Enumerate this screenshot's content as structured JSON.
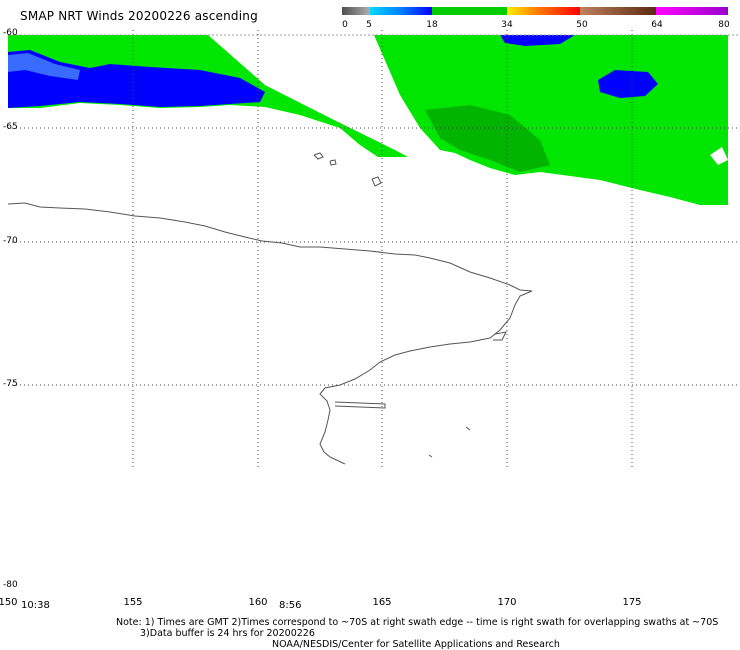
{
  "title": "SMAP NRT Winds 20200226 ascending",
  "colorbar": {
    "ticks": [
      "0",
      "5",
      "18",
      "34",
      "50",
      "64",
      "80"
    ],
    "colors": {
      "calm": "#7a7a7a",
      "light": "#00aaff",
      "moderate": "#0000ff",
      "gale": "#00cc00",
      "storm": "#f0e000",
      "hurricane": "#ff0000",
      "extreme": "#8b4a2a",
      "max": "#dd00dd"
    }
  },
  "swath_colors": {
    "green": "#00e600",
    "dark_green": "#00b400",
    "blue": "#0000ff",
    "coast": "#555555",
    "grid": "#444444"
  },
  "axes": {
    "latitudes": [
      "-60",
      "-65",
      "-70",
      "-75",
      "-80"
    ],
    "longitudes": [
      "150",
      "155",
      "160",
      "165",
      "170",
      "175"
    ]
  },
  "times": [
    "10:38",
    "8:56"
  ],
  "notes": {
    "line1": "Note: 1) Times are GMT  2)Times correspond to ~70S at right swath edge -- time is right swath for overlapping swaths at ~70S",
    "line2": "3)Data buffer is 24 hrs for 20200226",
    "line3": "NOAA/NESDIS/Center for Satellite Applications and Research"
  }
}
